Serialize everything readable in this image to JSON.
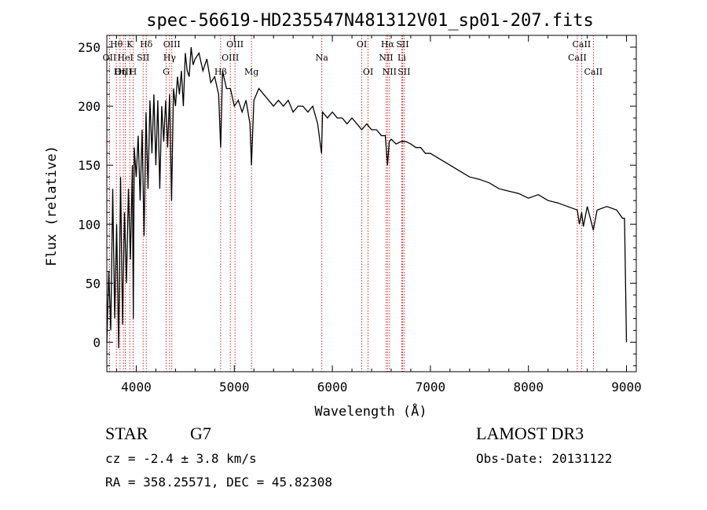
{
  "chart_data": {
    "type": "line",
    "title": "spec-56619-HD235547N481312V01_sp01-207.fits",
    "xlabel": "Wavelength (Å)",
    "ylabel": "Flux (relative)",
    "xlim": [
      3700,
      9100
    ],
    "ylim": [
      -25,
      260
    ],
    "xticks": [
      4000,
      5000,
      6000,
      7000,
      8000,
      9000
    ],
    "yticks": [
      0,
      50,
      100,
      150,
      200,
      250
    ],
    "grid": false,
    "series": [
      {
        "name": "spectrum",
        "x": [
          3700,
          3720,
          3740,
          3760,
          3780,
          3800,
          3820,
          3840,
          3860,
          3880,
          3900,
          3920,
          3940,
          3960,
          3970,
          3980,
          4000,
          4020,
          4040,
          4060,
          4080,
          4100,
          4120,
          4140,
          4160,
          4180,
          4200,
          4220,
          4240,
          4260,
          4280,
          4300,
          4320,
          4340,
          4360,
          4380,
          4400,
          4420,
          4440,
          4460,
          4480,
          4500,
          4520,
          4540,
          4560,
          4580,
          4600,
          4640,
          4680,
          4720,
          4760,
          4800,
          4840,
          4861,
          4880,
          4920,
          4960,
          5000,
          5040,
          5080,
          5120,
          5160,
          5175,
          5200,
          5250,
          5300,
          5350,
          5400,
          5450,
          5500,
          5550,
          5600,
          5650,
          5700,
          5750,
          5800,
          5850,
          5890,
          5900,
          5950,
          6000,
          6050,
          6100,
          6150,
          6200,
          6250,
          6300,
          6350,
          6400,
          6450,
          6500,
          6540,
          6563,
          6580,
          6600,
          6650,
          6700,
          6750,
          6800,
          6850,
          6900,
          6950,
          7000,
          7100,
          7200,
          7300,
          7400,
          7500,
          7600,
          7700,
          7800,
          7900,
          8000,
          8100,
          8200,
          8300,
          8400,
          8498,
          8520,
          8542,
          8560,
          8600,
          8662,
          8700,
          8800,
          8900,
          8960,
          8980,
          9000
        ],
        "values": [
          0,
          60,
          10,
          130,
          20,
          100,
          -5,
          140,
          15,
          110,
          50,
          130,
          70,
          150,
          20,
          165,
          140,
          175,
          120,
          180,
          90,
          195,
          130,
          205,
          160,
          210,
          150,
          205,
          130,
          200,
          170,
          205,
          165,
          210,
          120,
          215,
          200,
          225,
          210,
          230,
          200,
          245,
          230,
          225,
          250,
          235,
          240,
          245,
          230,
          240,
          220,
          225,
          210,
          165,
          230,
          215,
          215,
          200,
          205,
          195,
          205,
          185,
          150,
          205,
          215,
          210,
          205,
          200,
          205,
          200,
          205,
          195,
          200,
          200,
          195,
          200,
          185,
          160,
          195,
          190,
          195,
          190,
          190,
          185,
          190,
          185,
          180,
          185,
          180,
          180,
          175,
          175,
          150,
          170,
          172,
          168,
          170,
          170,
          168,
          165,
          165,
          160,
          160,
          155,
          150,
          145,
          140,
          138,
          135,
          130,
          128,
          126,
          122,
          125,
          120,
          118,
          115,
          112,
          100,
          110,
          98,
          115,
          95,
          112,
          115,
          112,
          105,
          105,
          0
        ]
      }
    ],
    "lines": [
      {
        "name": "Hθ",
        "x": 3797
      },
      {
        "name": "OII",
        "x": 3727
      },
      {
        "name": "OIII",
        "x": 3869
      },
      {
        "name": "K",
        "x": 3934
      },
      {
        "name": "H",
        "x": 3968
      },
      {
        "name": "HeI",
        "x": 3889
      },
      {
        "name": "Hη",
        "x": 3835
      },
      {
        "name": "Hδ",
        "x": 4102
      },
      {
        "name": "SII",
        "x": 4070
      },
      {
        "name": "OIII",
        "x": 4363
      },
      {
        "name": "Hγ",
        "x": 4340
      },
      {
        "name": "G",
        "x": 4305
      },
      {
        "name": "OIII",
        "x": 4959
      },
      {
        "name": "Hβ",
        "x": 4861
      },
      {
        "name": "OIII",
        "x": 5007
      },
      {
        "name": "Mg",
        "x": 5175
      },
      {
        "name": "Na",
        "x": 5893
      },
      {
        "name": "OI",
        "x": 6300
      },
      {
        "name": "OI",
        "x": 6364
      },
      {
        "name": "Hα",
        "x": 6563
      },
      {
        "name": "NII",
        "x": 6548
      },
      {
        "name": "NII",
        "x": 6583
      },
      {
        "name": "SII",
        "x": 6716
      },
      {
        "name": "SII",
        "x": 6731
      },
      {
        "name": "Li",
        "x": 6708
      },
      {
        "name": "CaII",
        "x": 8498
      },
      {
        "name": "CaII",
        "x": 8542
      },
      {
        "name": "CaII",
        "x": 8662
      }
    ],
    "line_labels": [
      {
        "text": "Hθ",
        "row": 0,
        "x": 3797
      },
      {
        "text": "K",
        "row": 0,
        "x": 3934
      },
      {
        "text": "Hδ",
        "row": 0,
        "x": 4102
      },
      {
        "text": "OIII",
        "row": 0,
        "x": 4363
      },
      {
        "text": "OIII",
        "row": 0,
        "x": 5007
      },
      {
        "text": "OI",
        "row": 0,
        "x": 6300
      },
      {
        "text": "Hα",
        "row": 0,
        "x": 6563
      },
      {
        "text": "SII",
        "row": 0,
        "x": 6716
      },
      {
        "text": "CaII",
        "row": 0,
        "x": 8542
      },
      {
        "text": "OII",
        "row": 1,
        "x": 3727
      },
      {
        "text": "HeI",
        "row": 1,
        "x": 3889
      },
      {
        "text": "SII",
        "row": 1,
        "x": 4070
      },
      {
        "text": "Hγ",
        "row": 1,
        "x": 4340
      },
      {
        "text": "OIII",
        "row": 1,
        "x": 4959
      },
      {
        "text": "Na",
        "row": 1,
        "x": 5893
      },
      {
        "text": "NII",
        "row": 1,
        "x": 6548
      },
      {
        "text": "Li",
        "row": 1,
        "x": 6708
      },
      {
        "text": "CaII",
        "row": 1,
        "x": 8498
      },
      {
        "text": "OIII",
        "row": 2,
        "x": 3869
      },
      {
        "text": "Hη",
        "row": 2,
        "x": 3835
      },
      {
        "text": "H",
        "row": 2,
        "x": 3968
      },
      {
        "text": "G",
        "row": 2,
        "x": 4305
      },
      {
        "text": "Hβ",
        "row": 2,
        "x": 4861
      },
      {
        "text": "Mg",
        "row": 2,
        "x": 5175
      },
      {
        "text": "OI",
        "row": 2,
        "x": 6364
      },
      {
        "text": "NII",
        "row": 2,
        "x": 6583
      },
      {
        "text": "SII",
        "row": 2,
        "x": 6731
      },
      {
        "text": "CaII",
        "row": 2,
        "x": 8662
      }
    ],
    "colors": {
      "spectrum": "#000000",
      "lines": "#b00000"
    }
  },
  "info": {
    "object_class": "STAR",
    "subclass": "G7",
    "survey": "LAMOST DR3",
    "redshift": "cz = -2.4 ± 3.8 km/s",
    "obs_date": "Obs-Date: 20131122",
    "coords": "RA = 358.25571, DEC =  45.82308"
  }
}
